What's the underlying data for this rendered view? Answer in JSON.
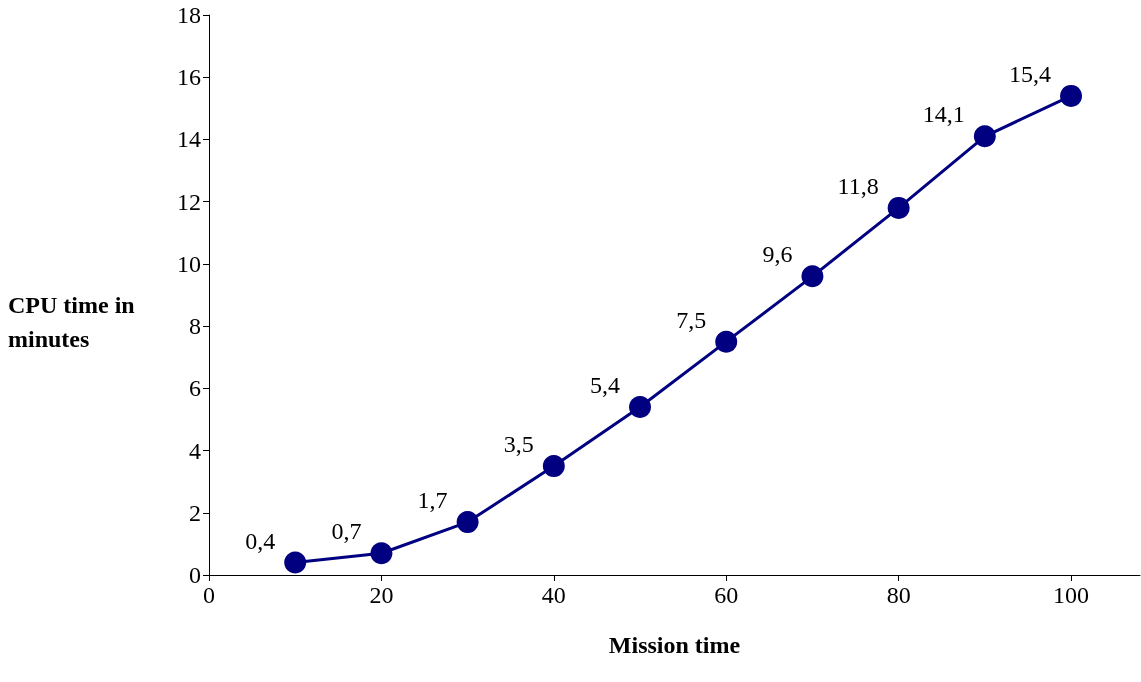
{
  "chart_data": {
    "type": "line",
    "xlabel": "Mission time",
    "ylabel": "CPU time in minutes",
    "x": [
      10,
      20,
      30,
      40,
      50,
      60,
      70,
      80,
      90,
      100
    ],
    "series": [
      {
        "color": "#000080",
        "values": [
          0.4,
          0.7,
          1.7,
          3.5,
          5.4,
          7.5,
          9.6,
          11.8,
          14.1,
          15.4
        ],
        "value_labels": [
          "0,4",
          "0,7",
          "1,7",
          "3,5",
          "5,4",
          "7,5",
          "9,6",
          "11,8",
          "14,1",
          "15,4"
        ]
      }
    ],
    "xlim": [
      0,
      108
    ],
    "xticks": [
      0,
      20,
      40,
      60,
      80,
      100
    ],
    "ylim": [
      0,
      18
    ],
    "yticks": [
      0,
      2,
      4,
      6,
      8,
      10,
      12,
      14,
      16,
      18
    ],
    "grid": false,
    "marker": "circle",
    "line_style": "solid"
  }
}
